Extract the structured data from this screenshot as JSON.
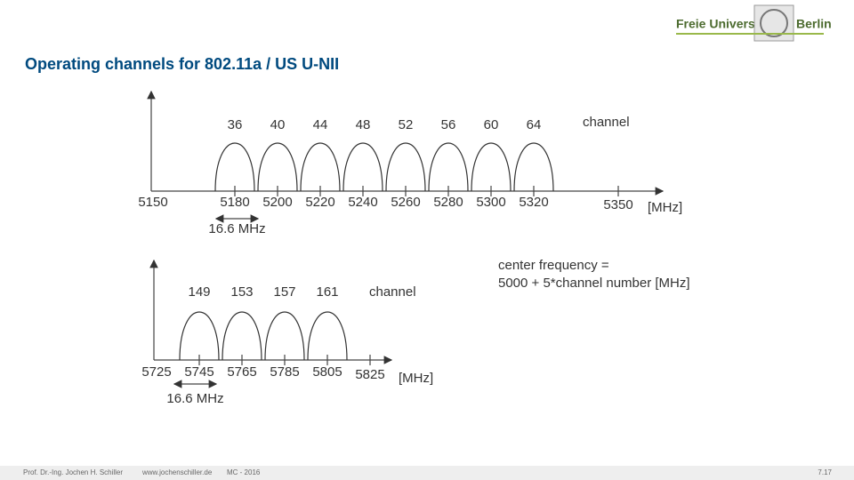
{
  "header": {
    "title": "Operating channels for 802.11a / US U-NII",
    "logo": {
      "left": "Freie Universität",
      "right": "Berlin"
    }
  },
  "band1": {
    "channels": [
      36,
      40,
      44,
      48,
      52,
      56,
      60,
      64
    ],
    "channel_label": "channel",
    "start": 5150,
    "frequencies": [
      5180,
      5200,
      5220,
      5240,
      5260,
      5280,
      5300,
      5320
    ],
    "end": 5350,
    "unit": "[MHz]",
    "width": "16.6 MHz"
  },
  "band2": {
    "channels": [
      149,
      153,
      157,
      161
    ],
    "channel_label": "channel",
    "frequencies": [
      5725,
      5745,
      5765,
      5785,
      5805
    ],
    "end": 5825,
    "unit": "[MHz]",
    "width": "16.6 MHz"
  },
  "note": {
    "line1": "center frequency =",
    "line2": "5000 + 5*channel number [MHz]"
  },
  "footer": {
    "author": "Prof. Dr.-Ing. Jochen H. Schiller",
    "site": "www.jochenschiller.de",
    "course": "MC - 2016",
    "page": "7.17"
  }
}
